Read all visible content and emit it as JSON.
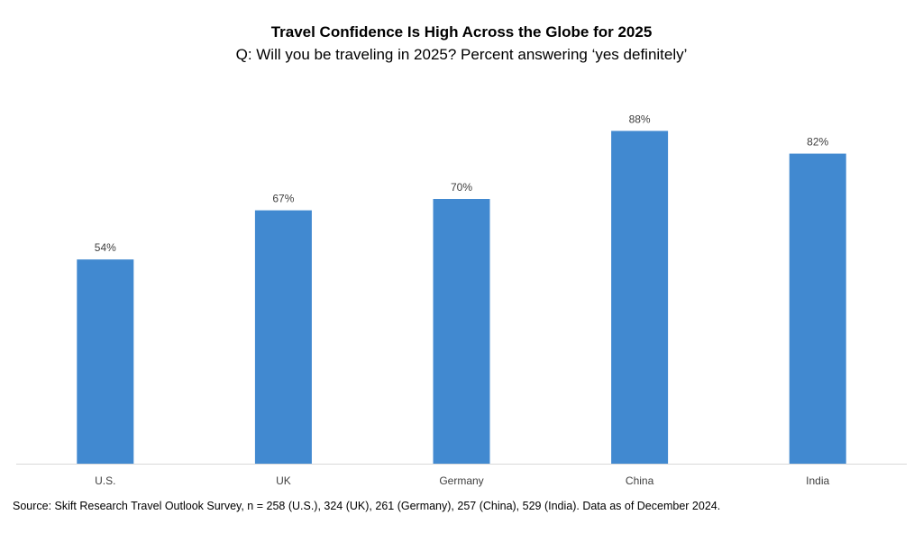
{
  "chart_data": {
    "type": "bar",
    "title": "Travel Confidence Is High Across the Globe for 2025",
    "subtitle": "Q: Will you be traveling in 2025? Percent answering ‘yes definitely’",
    "categories": [
      "U.S.",
      "UK",
      "Germany",
      "China",
      "India"
    ],
    "values": [
      54,
      67,
      70,
      88,
      82
    ],
    "value_labels": [
      "54%",
      "67%",
      "70%",
      "88%",
      "82%"
    ],
    "ylim": [
      0,
      100
    ],
    "grid": false,
    "legend": "none",
    "bar_color": "#4189d0",
    "axis_color": "#d9d9d9"
  },
  "source_note": "Source: Skift Research Travel Outlook Survey, n = 258 (U.S.), 324 (UK), 261 (Germany), 257 (China), 529 (India). Data as of December 2024."
}
